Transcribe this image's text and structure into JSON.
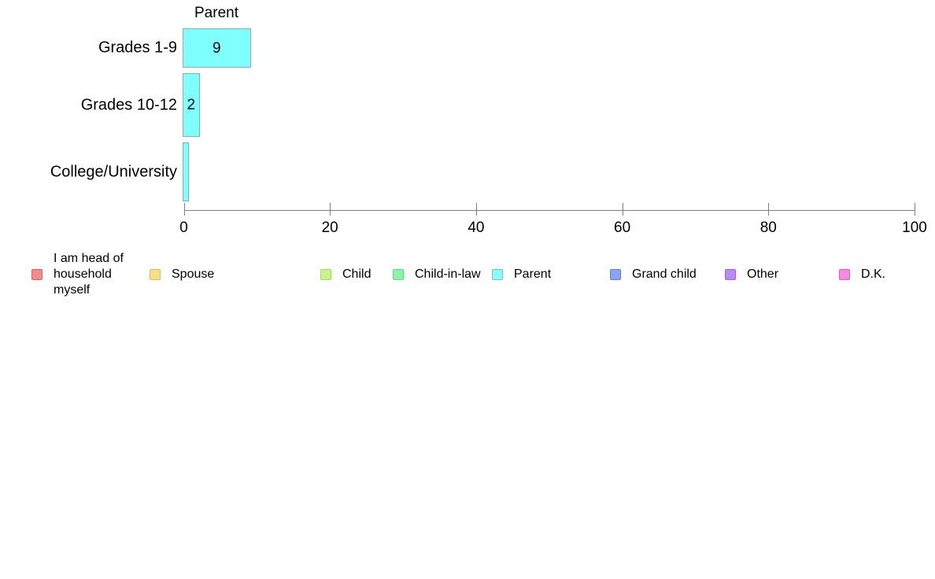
{
  "chart_data": {
    "type": "bar",
    "orientation": "horizontal",
    "title": "Parent",
    "categories": [
      "Grades 1-9",
      "Grades 10-12",
      "College/University"
    ],
    "values": [
      9,
      2,
      0.5
    ],
    "value_labels": [
      "9",
      "2",
      ""
    ],
    "xlabel": "",
    "ylabel": "",
    "xlim": [
      0,
      100
    ],
    "x_ticks": [
      0,
      20,
      40,
      60,
      80,
      100
    ],
    "grid": false,
    "bar_fill_color": "#80FFFF",
    "bar_border_color": "#8AAEB4",
    "axis_color": "#808080",
    "legend_position": "bottom",
    "legend": [
      {
        "label": "I am head of household myself",
        "fill": "#F48B8B",
        "border": "#D96060"
      },
      {
        "label": "Spouse",
        "fill": "#F7DE8B",
        "border": "#D9BE5F"
      },
      {
        "label": "Child",
        "fill": "#C9F48B",
        "border": "#A6D95F"
      },
      {
        "label": "Child-in-law",
        "fill": "#8BF4A9",
        "border": "#5FD987"
      },
      {
        "label": "Parent",
        "fill": "#84FEFE",
        "border": "#8CB6BB"
      },
      {
        "label": "Grand child",
        "fill": "#8BA3F7",
        "border": "#6380DB"
      },
      {
        "label": "Other",
        "fill": "#BA8BF7",
        "border": "#9A63DB"
      },
      {
        "label": "D.K.",
        "fill": "#F78BE0",
        "border": "#D563BE"
      }
    ]
  }
}
